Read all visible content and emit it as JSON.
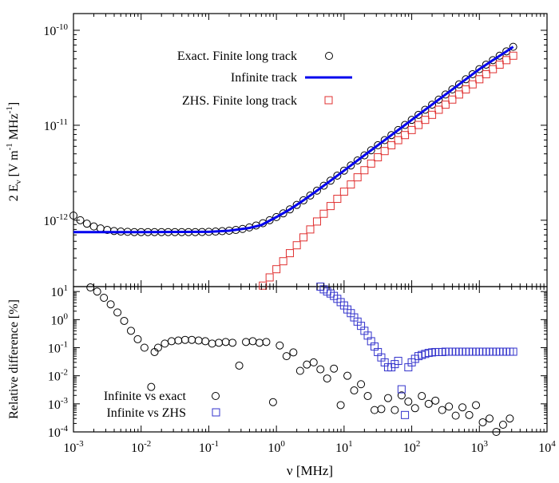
{
  "chart_data": {
    "type": "scatter",
    "x_label": "ν [MHz]",
    "x_scale": "log",
    "x_ticks": [
      {
        "base": "10",
        "exp": "-3"
      },
      {
        "base": "10",
        "exp": "-2"
      },
      {
        "base": "10",
        "exp": "-1"
      },
      {
        "base": "10",
        "exp": "0"
      },
      {
        "base": "10",
        "exp": "1"
      },
      {
        "base": "10",
        "exp": "2"
      },
      {
        "base": "10",
        "exp": "3"
      },
      {
        "base": "10",
        "exp": "4"
      }
    ],
    "top": {
      "ylabel": {
        "main": "2 E",
        "sub": "ν",
        "rest1": " [V m",
        "sup1": "-1",
        "rest2": " MHz",
        "sup2": "-1",
        "rest3": "]"
      },
      "y_scale": "log",
      "xlim": [
        0.001,
        10000
      ],
      "ylim": [
        2e-13,
        1.5e-10
      ],
      "y_ticks": [
        {
          "base": "10",
          "exp": "-12",
          "value": 1e-12
        },
        {
          "base": "10",
          "exp": "-11",
          "value": 1e-11
        },
        {
          "base": "10",
          "exp": "-10",
          "value": 1e-10
        }
      ],
      "legend_position": "top-center",
      "series": [
        {
          "name": "Exact. Finite long track",
          "marker": "circle",
          "color": "#000000",
          "x": [
            0.001,
            0.00126,
            0.00158,
            0.002,
            0.00251,
            0.00316,
            0.00398,
            0.00501,
            0.00631,
            0.00794,
            0.01,
            0.0126,
            0.0158,
            0.02,
            0.0251,
            0.0316,
            0.0398,
            0.0501,
            0.0631,
            0.0794,
            0.1,
            0.126,
            0.158,
            0.2,
            0.251,
            0.316,
            0.398,
            0.501,
            0.631,
            0.794,
            1,
            1.26,
            1.58,
            2,
            2.51,
            3.16,
            3.98,
            5.01,
            6.31,
            7.94,
            10,
            12.6,
            15.8,
            20,
            25.1,
            31.6,
            39.8,
            50.1,
            63.1,
            79.4,
            100,
            126,
            158,
            200,
            251,
            316,
            398,
            501,
            631,
            794,
            1000,
            1259,
            1585,
            1995,
            2512,
            3162
          ],
          "y": [
            1.12e-12,
            1e-12,
            9.2e-13,
            8.6e-13,
            8.2e-13,
            7.9e-13,
            7.7e-13,
            7.6e-13,
            7.55e-13,
            7.5e-13,
            7.5e-13,
            7.5e-13,
            7.5e-13,
            7.5e-13,
            7.5e-13,
            7.5e-13,
            7.5e-13,
            7.5e-13,
            7.5e-13,
            7.52e-13,
            7.55e-13,
            7.6e-13,
            7.67e-13,
            7.76e-13,
            7.9e-13,
            8.1e-13,
            8.4e-13,
            8.8e-13,
            9.3e-13,
            1e-12,
            1.08e-12,
            1.18e-12,
            1.3e-12,
            1.45e-12,
            1.62e-12,
            1.82e-12,
            2.05e-12,
            2.31e-12,
            2.61e-12,
            2.95e-12,
            3.33e-12,
            3.77e-12,
            4.26e-12,
            4.82e-12,
            5.45e-12,
            6.16e-12,
            6.97e-12,
            7.88e-12,
            8.91e-12,
            1.007e-11,
            1.139e-11,
            1.288e-11,
            1.457e-11,
            1.648e-11,
            1.864e-11,
            2.108e-11,
            2.384e-11,
            2.696e-11,
            3.049e-11,
            3.448e-11,
            3.9e-11,
            4.35e-11,
            4.85e-11,
            5.4e-11,
            6e-11,
            6.7e-11
          ]
        },
        {
          "name": "Infinite track",
          "marker": "line",
          "color": "#0000ee",
          "x": [
            0.001,
            0.01,
            0.1,
            0.2,
            0.4,
            0.6,
            1,
            1.58,
            2.51,
            3.98,
            6.31,
            10,
            15.8,
            25.1,
            39.8,
            63.1,
            100,
            158,
            251,
            398,
            631,
            1000,
            1585,
            2512,
            3162
          ],
          "y": [
            7.5e-13,
            7.5e-13,
            7.55e-13,
            7.76e-13,
            8.3e-13,
            8.9e-13,
            1.08e-12,
            1.3e-12,
            1.62e-12,
            2.05e-12,
            2.61e-12,
            3.33e-12,
            4.26e-12,
            5.45e-12,
            6.97e-12,
            8.91e-12,
            1.139e-11,
            1.457e-11,
            1.864e-11,
            2.384e-11,
            3.049e-11,
            3.9e-11,
            4.85e-11,
            6e-11,
            6.7e-11
          ]
        },
        {
          "name": "ZHS. Finite long track",
          "marker": "square",
          "color": "#e03030",
          "x": [
            0.631,
            0.794,
            1,
            1.26,
            1.58,
            2,
            2.51,
            3.16,
            3.98,
            5.01,
            6.31,
            7.94,
            10,
            12.6,
            15.8,
            20,
            25.1,
            31.6,
            39.8,
            50.1,
            63.1,
            79.4,
            100,
            126,
            158,
            200,
            251,
            316,
            398,
            501,
            631,
            794,
            1000,
            1259,
            1585,
            1995,
            2512,
            3162
          ],
          "y": [
            2.05e-13,
            2.5e-13,
            3.05e-13,
            3.7e-13,
            4.5e-13,
            5.45e-13,
            6.6e-13,
            8e-13,
            9.7e-13,
            1.17e-12,
            1.41e-12,
            1.68e-12,
            2e-12,
            2.38e-12,
            2.83e-12,
            3.36e-12,
            3.95e-12,
            4.6e-12,
            5.35e-12,
            6.16e-12,
            6.97e-12,
            7.88e-12,
            8.91e-12,
            1.007e-11,
            1.139e-11,
            1.288e-11,
            1.457e-11,
            1.648e-11,
            1.864e-11,
            2.108e-11,
            2.384e-11,
            2.696e-11,
            3.049e-11,
            3.448e-11,
            3.9e-11,
            4.35e-11,
            4.85e-11,
            5.4e-11
          ]
        }
      ]
    },
    "bottom": {
      "ylabel": "Relative difference [%]",
      "y_scale": "log",
      "xlim": [
        0.001,
        10000
      ],
      "ylim": [
        0.0001,
        15
      ],
      "y_ticks": [
        {
          "base": "10",
          "exp": "-4",
          "value": 0.0001
        },
        {
          "base": "10",
          "exp": "-3",
          "value": 0.001
        },
        {
          "base": "10",
          "exp": "-2",
          "value": 0.01
        },
        {
          "base": "10",
          "exp": "-1",
          "value": 0.1
        },
        {
          "base": "10",
          "exp": "0",
          "value": 1
        },
        {
          "base": "10",
          "exp": "1",
          "value": 10
        }
      ],
      "legend_position": "bottom-left",
      "series": [
        {
          "name": "Infinite vs exact",
          "marker": "circle",
          "color": "#000000",
          "x": [
            0.00178,
            0.00224,
            0.00282,
            0.00355,
            0.00447,
            0.00562,
            0.00708,
            0.00891,
            0.0112,
            0.0141,
            0.0158,
            0.0178,
            0.0224,
            0.0282,
            0.0355,
            0.0447,
            0.0562,
            0.0708,
            0.0891,
            0.112,
            0.141,
            0.178,
            0.224,
            0.282,
            0.355,
            0.447,
            0.562,
            0.708,
            0.891,
            1.12,
            1.41,
            1.78,
            2.24,
            2.82,
            3.55,
            4.47,
            5.62,
            7.08,
            8.91,
            11.2,
            14.1,
            17.8,
            22.4,
            28.2,
            35.5,
            44.7,
            56.2,
            70.8,
            89.1,
            112,
            141,
            178,
            224,
            282,
            355,
            447,
            562,
            708,
            891,
            1122,
            1413,
            1778,
            2239,
            2818
          ],
          "y": [
            14,
            10,
            6,
            3.5,
            1.8,
            0.9,
            0.4,
            0.2,
            0.1,
            0.004,
            0.07,
            0.1,
            0.14,
            0.17,
            0.18,
            0.19,
            0.19,
            0.18,
            0.17,
            0.14,
            0.15,
            0.16,
            0.15,
            0.023,
            0.16,
            0.17,
            0.15,
            0.16,
            0.00115,
            0.12,
            0.05,
            0.068,
            0.015,
            0.025,
            0.03,
            0.017,
            0.008,
            0.018,
            0.0009,
            0.01,
            0.003,
            0.005,
            0.0019,
            0.0006,
            0.00065,
            0.0016,
            0.0006,
            0.002,
            0.0012,
            0.0007,
            0.0019,
            0.001,
            0.0013,
            0.0006,
            0.0008,
            0.00038,
            0.00075,
            0.0004,
            0.0009,
            0.00022,
            0.0003,
            0.0001,
            0.00018,
            0.0003
          ]
        },
        {
          "name": "Infinite vs ZHS",
          "marker": "square",
          "color": "#3333cc",
          "x": [
            4.47,
            5.01,
            5.62,
            6.31,
            7.08,
            7.94,
            8.91,
            10,
            11.2,
            12.6,
            14.1,
            15.8,
            17.8,
            20,
            22.4,
            25.1,
            28.2,
            31.6,
            35.5,
            39.8,
            44.7,
            50.1,
            56.2,
            63.1,
            70.8,
            79.4,
            89.1,
            100,
            112,
            126,
            141,
            158,
            178,
            200,
            224,
            251,
            282,
            316,
            355,
            398,
            447,
            501,
            562,
            631,
            708,
            794,
            891,
            1000,
            1122,
            1259,
            1413,
            1585,
            1778,
            1995,
            2239,
            2512,
            2818,
            3162
          ],
          "y": [
            15,
            12,
            10,
            8.5,
            7,
            5.5,
            4.2,
            3.2,
            2.3,
            1.7,
            1.2,
            0.85,
            0.6,
            0.4,
            0.27,
            0.17,
            0.11,
            0.07,
            0.045,
            0.03,
            0.02,
            0.02,
            0.026,
            0.034,
            0.0033,
            0.0004,
            0.02,
            0.03,
            0.04,
            0.05,
            0.055,
            0.06,
            0.065,
            0.068,
            0.07,
            0.07,
            0.07,
            0.072,
            0.072,
            0.072,
            0.072,
            0.072,
            0.072,
            0.072,
            0.072,
            0.072,
            0.072,
            0.072,
            0.072,
            0.072,
            0.072,
            0.072,
            0.072,
            0.072,
            0.072,
            0.072,
            0.072,
            0.072
          ]
        }
      ]
    }
  }
}
